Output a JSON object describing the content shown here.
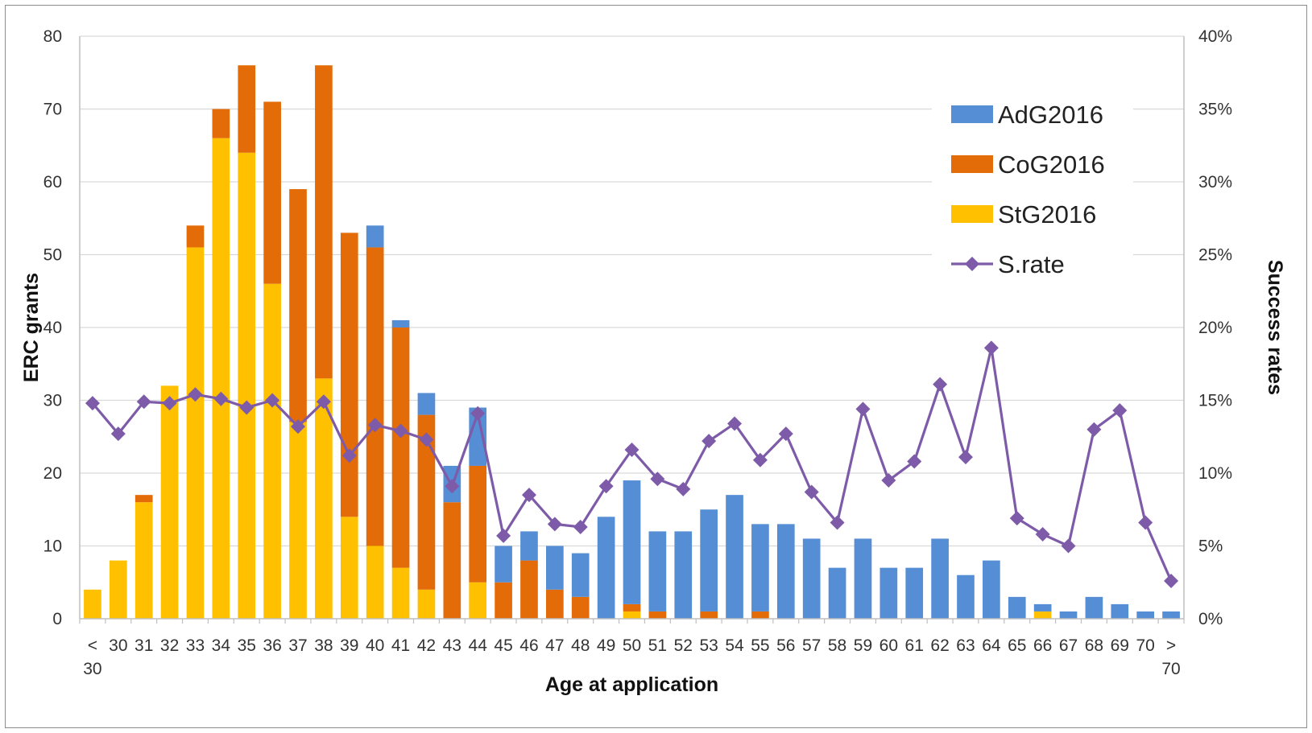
{
  "chart_data": {
    "type": "bar",
    "title": "",
    "xlabel": "Age at application",
    "ylabel": "ERC grants",
    "y2label": "Success rates",
    "ylim": [
      0,
      80
    ],
    "y2lim": [
      0,
      0.4
    ],
    "yticks": [
      "0",
      "10",
      "20",
      "30",
      "40",
      "50",
      "60",
      "70",
      "80"
    ],
    "y2ticks": [
      "0%",
      "5%",
      "10%",
      "15%",
      "20%",
      "25%",
      "30%",
      "35%",
      "40%"
    ],
    "categories": [
      "< 30",
      "30",
      "31",
      "32",
      "33",
      "34",
      "35",
      "36",
      "37",
      "38",
      "39",
      "40",
      "41",
      "42",
      "43",
      "44",
      "45",
      "46",
      "47",
      "48",
      "49",
      "50",
      "51",
      "52",
      "53",
      "54",
      "55",
      "56",
      "57",
      "58",
      "59",
      "60",
      "61",
      "62",
      "63",
      "64",
      "65",
      "66",
      "67",
      "68",
      "69",
      "70",
      "> 70"
    ],
    "legend_position": "top-right",
    "grid": true,
    "stacked": true,
    "series": [
      {
        "name": "StG2016",
        "kind": "bar",
        "color": "#FFC000",
        "values": [
          4,
          8,
          16,
          32,
          51,
          66,
          64,
          46,
          27,
          33,
          14,
          10,
          7,
          4,
          0,
          5,
          0,
          0,
          0,
          0,
          0,
          1,
          0,
          0,
          0,
          0,
          0,
          0,
          0,
          0,
          0,
          0,
          0,
          0,
          0,
          0,
          0,
          1,
          0,
          0,
          0,
          0,
          0
        ]
      },
      {
        "name": "CoG2016",
        "kind": "bar",
        "color": "#E36C09",
        "values": [
          0,
          0,
          1,
          0,
          3,
          4,
          12,
          25,
          32,
          43,
          39,
          41,
          33,
          24,
          16,
          16,
          5,
          8,
          4,
          3,
          0,
          1,
          1,
          0,
          1,
          0,
          1,
          0,
          0,
          0,
          0,
          0,
          0,
          0,
          0,
          0,
          0,
          0,
          0,
          0,
          0,
          0,
          0
        ]
      },
      {
        "name": "AdG2016",
        "kind": "bar",
        "color": "#558ED5",
        "values": [
          0,
          0,
          0,
          0,
          0,
          0,
          0,
          0,
          0,
          0,
          0,
          3,
          1,
          3,
          5,
          8,
          5,
          4,
          6,
          6,
          14,
          17,
          11,
          12,
          14,
          17,
          12,
          13,
          11,
          7,
          11,
          7,
          7,
          11,
          6,
          8,
          3,
          1,
          1,
          3,
          2,
          1,
          1
        ]
      },
      {
        "name": "S.rate",
        "kind": "line",
        "axis": "right",
        "color": "#7E5BA8",
        "values": [
          0.148,
          0.127,
          0.149,
          0.148,
          0.154,
          0.151,
          0.145,
          0.15,
          0.132,
          0.149,
          0.112,
          0.133,
          0.129,
          0.123,
          0.091,
          0.141,
          0.057,
          0.085,
          0.065,
          0.063,
          0.091,
          0.116,
          0.096,
          0.089,
          0.122,
          0.134,
          0.109,
          0.127,
          0.087,
          0.066,
          0.144,
          0.095,
          0.108,
          0.161,
          0.111,
          0.186,
          0.069,
          0.058,
          0.05,
          0.13,
          0.143,
          0.066,
          0.026
        ]
      }
    ]
  }
}
